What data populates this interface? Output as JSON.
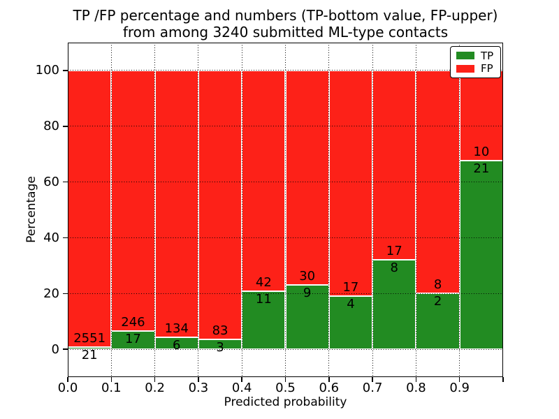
{
  "figure": {
    "title_line1": "TP /FP percentage and numbers (TP-bottom value, FP-upper)",
    "title_line2": "from among 3240 submitted ML-type contacts"
  },
  "chart_data": {
    "type": "bar",
    "stacked": true,
    "normalized_to": 100,
    "title": "TP /FP percentage and numbers (TP-bottom value, FP-upper)\nfrom among 3240 submitted ML-type contacts",
    "xlabel": "Predicted probability",
    "ylabel": "Percentage",
    "total_contacts": 3240,
    "bins": [
      {
        "range": "0.0-0.1",
        "tp": 21,
        "fp": 2551,
        "tp_percent": 0.82,
        "fp_percent": 99.18
      },
      {
        "range": "0.1-0.2",
        "tp": 17,
        "fp": 246,
        "tp_percent": 6.46,
        "fp_percent": 93.54
      },
      {
        "range": "0.2-0.3",
        "tp": 6,
        "fp": 134,
        "tp_percent": 4.29,
        "fp_percent": 95.71
      },
      {
        "range": "0.3-0.4",
        "tp": 3,
        "fp": 83,
        "tp_percent": 3.49,
        "fp_percent": 96.51
      },
      {
        "range": "0.4-0.5",
        "tp": 11,
        "fp": 42,
        "tp_percent": 20.75,
        "fp_percent": 79.25
      },
      {
        "range": "0.5-0.6",
        "tp": 9,
        "fp": 30,
        "tp_percent": 23.08,
        "fp_percent": 76.92
      },
      {
        "range": "0.6-0.7",
        "tp": 4,
        "fp": 17,
        "tp_percent": 19.05,
        "fp_percent": 80.95
      },
      {
        "range": "0.7-0.8",
        "tp": 8,
        "fp": 17,
        "tp_percent": 32.0,
        "fp_percent": 68.0
      },
      {
        "range": "0.8-0.9",
        "tp": 2,
        "fp": 8,
        "tp_percent": 20.0,
        "fp_percent": 80.0
      },
      {
        "range": "0.9-1.0",
        "tp": 21,
        "fp": 10,
        "tp_percent": 67.74,
        "fp_percent": 32.26
      }
    ],
    "x_tick_labels": [
      "0.0",
      "0.1",
      "0.2",
      "0.3",
      "0.4",
      "0.5",
      "0.6",
      "0.7",
      "0.8",
      "0.9"
    ],
    "y_ticks": [
      0,
      20,
      40,
      60,
      80,
      100
    ],
    "xlim": [
      0.0,
      1.0
    ],
    "ylim": [
      -10,
      110
    ],
    "grid": "dotted",
    "legend": {
      "position": "upper right",
      "entries": [
        {
          "label": "TP",
          "color": "#228b22"
        },
        {
          "label": "FP",
          "color": "#fd2118"
        }
      ]
    }
  },
  "colors": {
    "tp": "#228b22",
    "fp": "#fd2118",
    "grid": "#000000",
    "text": "#000000",
    "background": "#ffffff"
  }
}
